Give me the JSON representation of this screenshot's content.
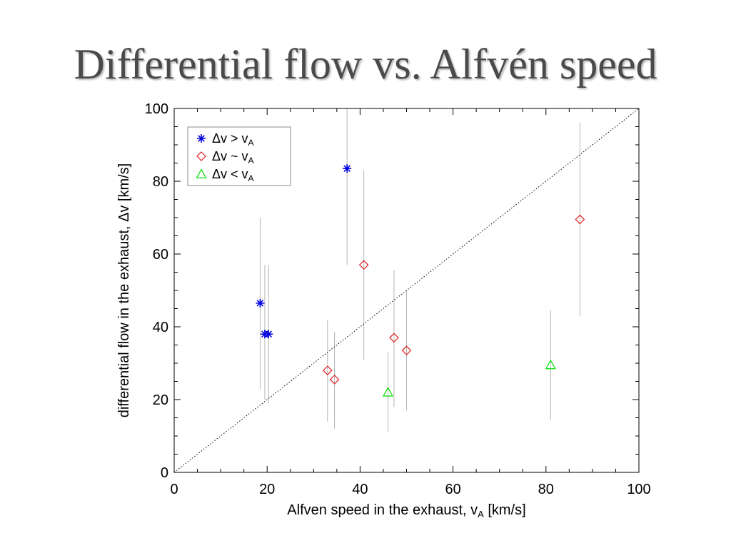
{
  "title": "Differential flow vs. Alfvén speed",
  "chart_data": {
    "type": "scatter",
    "xlabel_main": "Alfven speed in the exhaust, v",
    "xlabel_sub": "A",
    "xlabel_tail": " [km/s]",
    "ylabel": "differential flow in the exhaust, Δv [km/s]",
    "xlim": [
      0,
      100
    ],
    "ylim": [
      0,
      100
    ],
    "xticks": [
      0,
      20,
      40,
      60,
      80,
      100
    ],
    "yticks": [
      0,
      20,
      40,
      60,
      80,
      100
    ],
    "grid": false,
    "reference_line": {
      "type": "diagonal",
      "from": [
        0,
        0
      ],
      "to": [
        100,
        100
      ],
      "style": "dotted"
    },
    "legend_position": "top-left",
    "series": [
      {
        "name": "Δv > vA",
        "legend_main": "Δv > v",
        "legend_sub": "A",
        "marker": "asterisk",
        "color": "#0000e0",
        "points": [
          {
            "x": 18.5,
            "y": 46.5,
            "ylo": 23,
            "yhi": 70
          },
          {
            "x": 19.5,
            "y": 38,
            "ylo": 20,
            "yhi": 57
          },
          {
            "x": 20.3,
            "y": 38,
            "ylo": 19,
            "yhi": 57
          },
          {
            "x": 37.2,
            "y": 83.5,
            "ylo": 57,
            "yhi": 100
          }
        ]
      },
      {
        "name": "Δv ~ vA",
        "legend_main": "Δv ~ v",
        "legend_sub": "A",
        "marker": "diamond",
        "color": "#e02020",
        "points": [
          {
            "x": 33.0,
            "y": 28,
            "ylo": 14,
            "yhi": 42
          },
          {
            "x": 34.5,
            "y": 25.5,
            "ylo": 12,
            "yhi": 38.5
          },
          {
            "x": 40.8,
            "y": 57,
            "ylo": 31,
            "yhi": 83
          },
          {
            "x": 47.3,
            "y": 37,
            "ylo": 18,
            "yhi": 55.5
          },
          {
            "x": 50.0,
            "y": 33.5,
            "ylo": 17,
            "yhi": 50
          },
          {
            "x": 87.3,
            "y": 69.5,
            "ylo": 43,
            "yhi": 96
          }
        ]
      },
      {
        "name": "Δv < vA",
        "legend_main": "Δv < v",
        "legend_sub": "A",
        "marker": "triangle",
        "color": "#00e000",
        "points": [
          {
            "x": 46.0,
            "y": 22,
            "ylo": 11,
            "yhi": 33
          },
          {
            "x": 81.0,
            "y": 29.5,
            "ylo": 14.5,
            "yhi": 44.5
          }
        ]
      }
    ]
  }
}
